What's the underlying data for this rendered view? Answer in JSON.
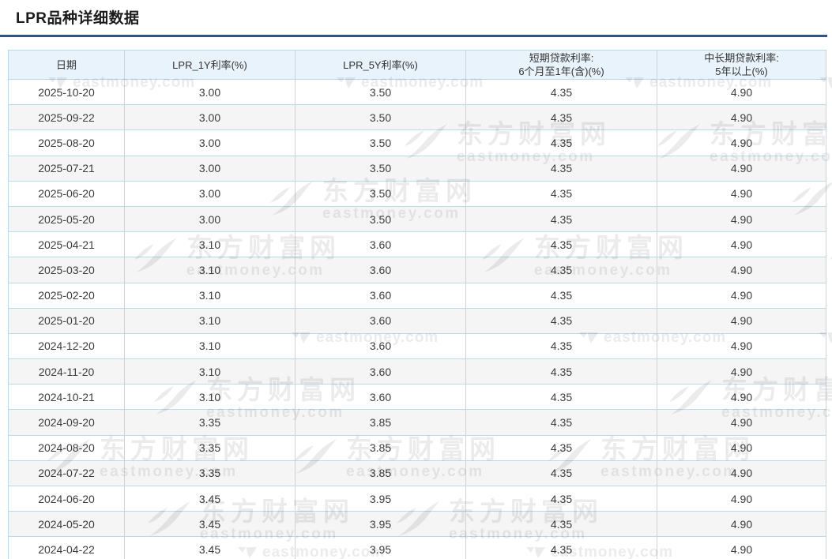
{
  "page": {
    "title": "LPR品种详细数据"
  },
  "table": {
    "columns": [
      {
        "id": "date",
        "label": "日期"
      },
      {
        "id": "lpr-1y",
        "label": "LPR_1Y利率(%)"
      },
      {
        "id": "lpr-5y",
        "label": "LPR_5Y利率(%)"
      },
      {
        "id": "short-term",
        "label": "短期贷款利率:\n6个月至1年(含)(%)"
      },
      {
        "id": "mid-long-term",
        "label": "中长期贷款利率:\n5年以上(%)"
      }
    ],
    "rows": [
      [
        "2025-10-20",
        "3.00",
        "3.50",
        "4.35",
        "4.90"
      ],
      [
        "2025-09-22",
        "3.00",
        "3.50",
        "4.35",
        "4.90"
      ],
      [
        "2025-08-20",
        "3.00",
        "3.50",
        "4.35",
        "4.90"
      ],
      [
        "2025-07-21",
        "3.00",
        "3.50",
        "4.35",
        "4.90"
      ],
      [
        "2025-06-20",
        "3.00",
        "3.50",
        "4.35",
        "4.90"
      ],
      [
        "2025-05-20",
        "3.00",
        "3.50",
        "4.35",
        "4.90"
      ],
      [
        "2025-04-21",
        "3.10",
        "3.60",
        "4.35",
        "4.90"
      ],
      [
        "2025-03-20",
        "3.10",
        "3.60",
        "4.35",
        "4.90"
      ],
      [
        "2025-02-20",
        "3.10",
        "3.60",
        "4.35",
        "4.90"
      ],
      [
        "2025-01-20",
        "3.10",
        "3.60",
        "4.35",
        "4.90"
      ],
      [
        "2024-12-20",
        "3.10",
        "3.60",
        "4.35",
        "4.90"
      ],
      [
        "2024-11-20",
        "3.10",
        "3.60",
        "4.35",
        "4.90"
      ],
      [
        "2024-10-21",
        "3.10",
        "3.60",
        "4.35",
        "4.90"
      ],
      [
        "2024-09-20",
        "3.35",
        "3.85",
        "4.35",
        "4.90"
      ],
      [
        "2024-08-20",
        "3.35",
        "3.85",
        "4.35",
        "4.90"
      ],
      [
        "2024-07-22",
        "3.35",
        "3.85",
        "4.35",
        "4.90"
      ],
      [
        "2024-06-20",
        "3.45",
        "3.95",
        "4.35",
        "4.90"
      ],
      [
        "2024-05-20",
        "3.45",
        "3.95",
        "4.35",
        "4.90"
      ],
      [
        "2024-04-22",
        "3.45",
        "3.95",
        "4.35",
        "4.90"
      ]
    ]
  },
  "watermark": {
    "site_name": "东方财富网",
    "site_domain": "eastmoney.com"
  },
  "colors": {
    "accent_rule": "#2e5486",
    "table_border": "#b9d9ee",
    "header_bg": "#e9f3fc",
    "alt_row_bg": "#f5f5f5"
  }
}
